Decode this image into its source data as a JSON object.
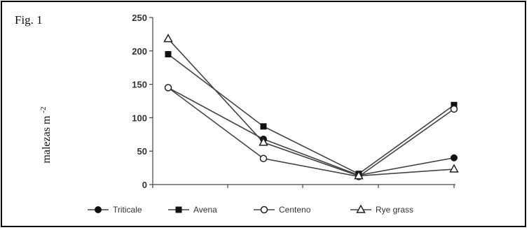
{
  "figure": {
    "label": "Fig. 1"
  },
  "chart_data": {
    "type": "line",
    "x": [
      1,
      2,
      3,
      4
    ],
    "ylabel_text": "malezas m",
    "ylabel_sup": "-2",
    "ylim": [
      0,
      250
    ],
    "yticks": [
      0,
      50,
      100,
      150,
      200,
      250
    ],
    "grid": false,
    "legend_position": "bottom",
    "series": [
      {
        "name": "Triticale",
        "marker": "filled-circle",
        "values": [
          145,
          68,
          14,
          40
        ]
      },
      {
        "name": "Avena",
        "marker": "filled-square",
        "values": [
          195,
          87,
          16,
          119
        ]
      },
      {
        "name": "Centeno",
        "marker": "open-circle",
        "values": [
          145,
          39,
          12,
          113
        ]
      },
      {
        "name": "Rye grass",
        "marker": "open-triangle",
        "values": [
          218,
          63,
          13,
          23
        ]
      }
    ],
    "colors": {
      "line": "#444444",
      "axis": "#444444"
    }
  }
}
